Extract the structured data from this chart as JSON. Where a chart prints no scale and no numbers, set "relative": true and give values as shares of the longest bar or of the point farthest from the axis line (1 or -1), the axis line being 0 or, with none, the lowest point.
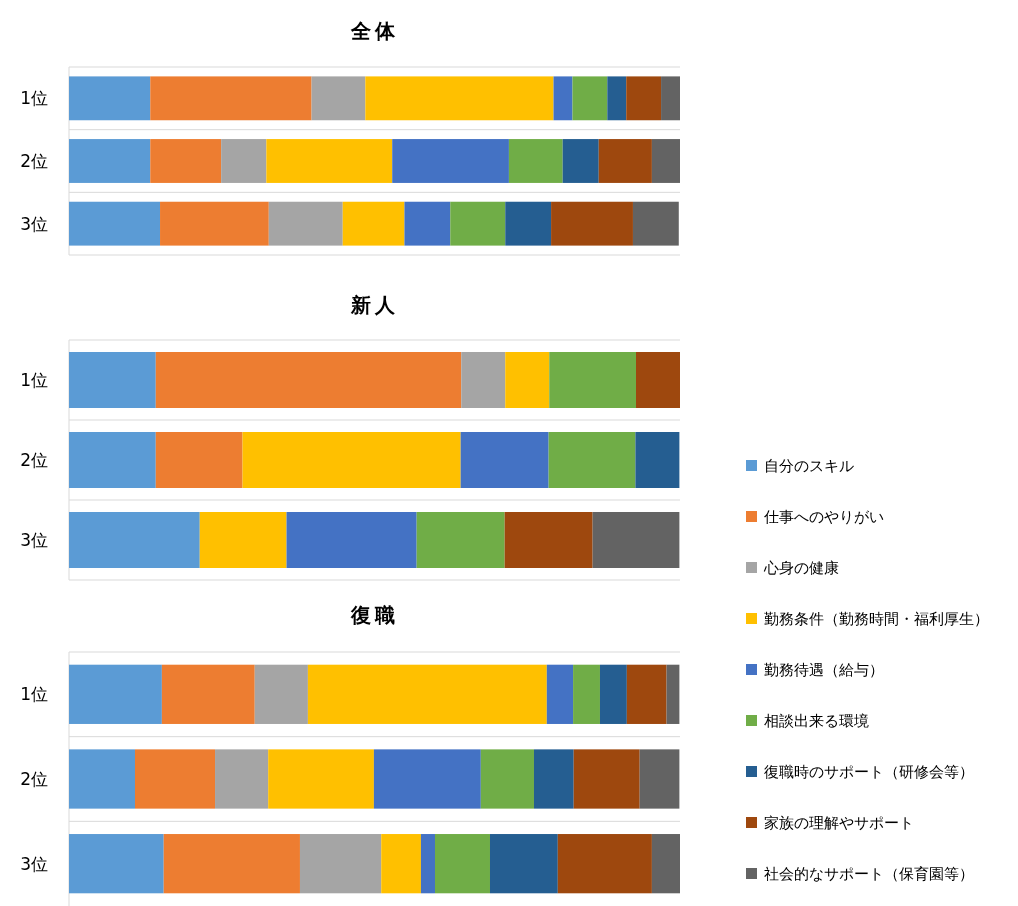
{
  "chart_data": [
    {
      "type": "bar",
      "orientation": "horizontal",
      "stacked": true,
      "relative": true,
      "grid": "y",
      "title": "全体",
      "categories": [
        "1位",
        "2位",
        "3位"
      ],
      "series": [
        {
          "color": "#5b9bd5",
          "values": [
            0.133,
            0.133,
            0.149
          ]
        },
        {
          "color": "#ed7d31",
          "values": [
            0.264,
            0.116,
            0.178
          ]
        },
        {
          "color": "#a5a5a5",
          "values": [
            0.088,
            0.074,
            0.121
          ]
        },
        {
          "color": "#ffc000",
          "values": [
            0.308,
            0.206,
            0.101
          ]
        },
        {
          "color": "#4472c4",
          "values": [
            0.031,
            0.191,
            0.075
          ]
        },
        {
          "color": "#70ad47",
          "values": [
            0.057,
            0.088,
            0.09
          ]
        },
        {
          "color": "#255e91",
          "values": [
            0.031,
            0.059,
            0.075
          ]
        },
        {
          "color": "#9e480e",
          "values": [
            0.057,
            0.087,
            0.134
          ]
        },
        {
          "color": "#636363",
          "values": [
            0.031,
            0.046,
            0.075
          ]
        }
      ]
    },
    {
      "type": "bar",
      "orientation": "horizontal",
      "stacked": true,
      "relative": true,
      "grid": "y",
      "title": "新人",
      "categories": [
        "1位",
        "2位",
        "3位"
      ],
      "series": [
        {
          "color": "#5b9bd5",
          "values": [
            0.142,
            0.142,
            0.214
          ]
        },
        {
          "color": "#ed7d31",
          "values": [
            0.5,
            0.142,
            0
          ]
        },
        {
          "color": "#a5a5a5",
          "values": [
            0.072,
            0,
            0
          ]
        },
        {
          "color": "#ffc000",
          "values": [
            0.072,
            0.357,
            0.142
          ]
        },
        {
          "color": "#4472c4",
          "values": [
            0,
            0.144,
            0.213
          ]
        },
        {
          "color": "#70ad47",
          "values": [
            0.142,
            0.142,
            0.144
          ]
        },
        {
          "color": "#255e91",
          "values": [
            0,
            0.072,
            0
          ]
        },
        {
          "color": "#9e480e",
          "values": [
            0.072,
            0,
            0.144
          ]
        },
        {
          "color": "#636363",
          "values": [
            0,
            0,
            0.142
          ]
        }
      ]
    },
    {
      "type": "bar",
      "orientation": "horizontal",
      "stacked": true,
      "relative": true,
      "grid": "y",
      "title": "復職",
      "categories": [
        "1位",
        "2位",
        "3位"
      ],
      "legend": "right",
      "series": [
        {
          "name": "自分のスキル",
          "color": "#5b9bd5",
          "values": [
            0.152,
            0.108,
            0.155
          ]
        },
        {
          "name": "仕事へのやりがい",
          "color": "#ed7d31",
          "values": [
            0.152,
            0.131,
            0.223
          ]
        },
        {
          "name": "心身の健康",
          "color": "#a5a5a5",
          "values": [
            0.087,
            0.087,
            0.133
          ]
        },
        {
          "name": "勤務条件（勤務時間・福利厚生）",
          "color": "#ffc000",
          "values": [
            0.391,
            0.173,
            0.065
          ]
        },
        {
          "name": "勤務待遇（給与）",
          "color": "#4472c4",
          "values": [
            0.043,
            0.175,
            0.023
          ]
        },
        {
          "name": "相談出来る環境",
          "color": "#70ad47",
          "values": [
            0.044,
            0.087,
            0.09
          ]
        },
        {
          "name": "復職時のサポート（研修会等）",
          "color": "#255e91",
          "values": [
            0.044,
            0.065,
            0.111
          ]
        },
        {
          "name": "家族の理解やサポート",
          "color": "#9e480e",
          "values": [
            0.065,
            0.108,
            0.154
          ]
        },
        {
          "name": "社会的なサポート（保育園等）",
          "color": "#636363",
          "values": [
            0.021,
            0.065,
            0.046
          ]
        }
      ]
    }
  ]
}
